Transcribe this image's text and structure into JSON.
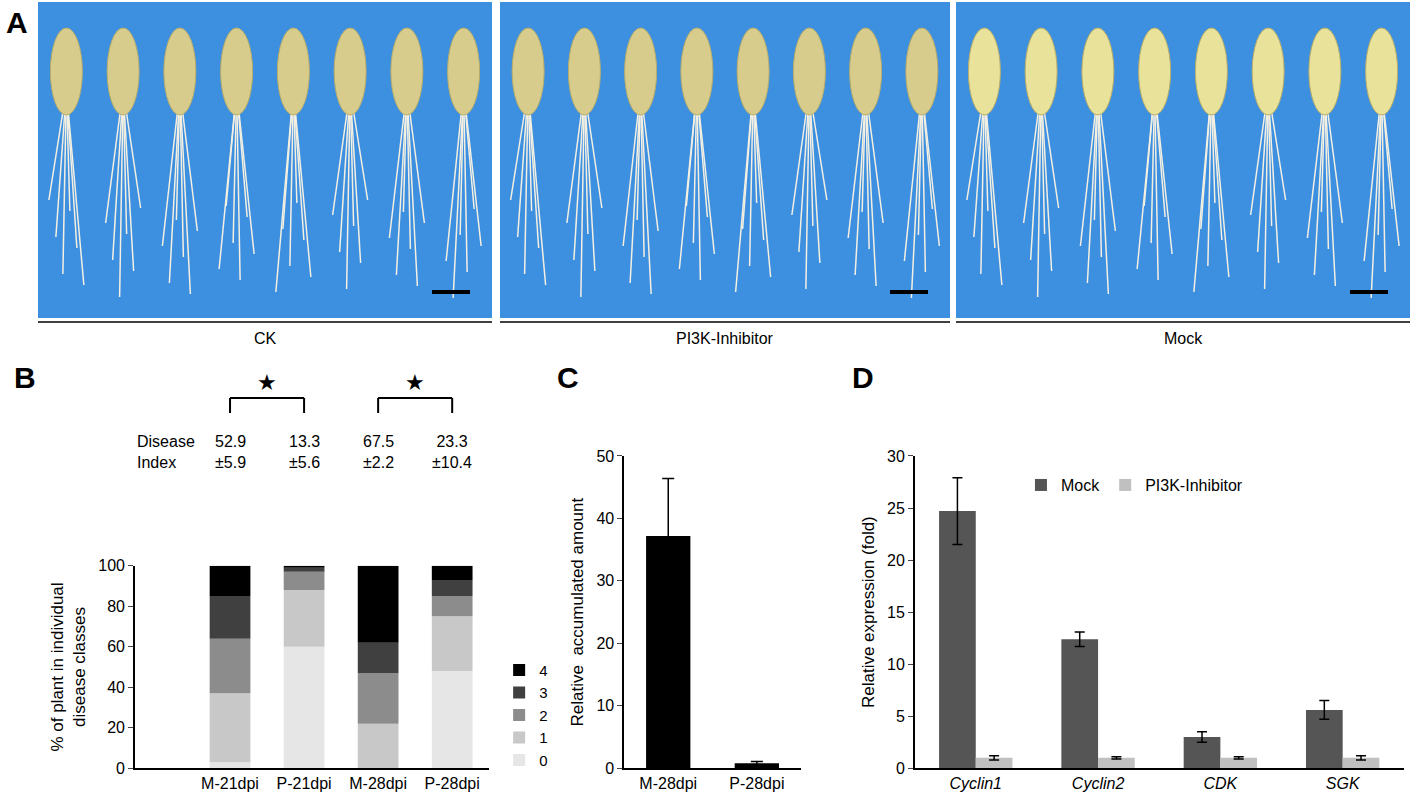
{
  "photo_panel": {
    "label": "A",
    "captions": [
      "CK",
      "PI3K-Inhibitor",
      "Mock"
    ]
  },
  "chart_data": [
    {
      "label": "B",
      "type": "bar",
      "stacked": true,
      "categories": [
        "M-21dpi",
        "P-21dpi",
        "M-28dpi",
        "P-28dpi"
      ],
      "series": [
        {
          "name": "0",
          "color": "#e6e6e6",
          "values": [
            3,
            60,
            0,
            48
          ]
        },
        {
          "name": "1",
          "color": "#c8c8c8",
          "values": [
            34,
            28,
            22,
            27
          ]
        },
        {
          "name": "2",
          "color": "#8c8c8c",
          "values": [
            27,
            9,
            25,
            10
          ]
        },
        {
          "name": "3",
          "color": "#404040",
          "values": [
            21,
            2,
            15,
            8
          ]
        },
        {
          "name": "4",
          "color": "#000000",
          "values": [
            15,
            1,
            38,
            7
          ]
        }
      ],
      "y_label": "% of plant in individual disease classes",
      "ylim": [
        0,
        100
      ],
      "yticks": [
        0,
        20,
        40,
        60,
        80,
        100
      ],
      "legend": "right",
      "disease_index": {
        "label": [
          "Disease",
          "Index"
        ],
        "values": [
          [
            "52.9",
            "±5.9"
          ],
          [
            "13.3",
            "±5.6"
          ],
          [
            "67.5",
            "±2.2"
          ],
          [
            "23.3",
            "±10.4"
          ]
        ]
      },
      "significance": [
        {
          "from": 0,
          "to": 1,
          "label": "★"
        },
        {
          "from": 2,
          "to": 3,
          "label": "★"
        }
      ]
    },
    {
      "label": "C",
      "type": "bar",
      "categories": [
        "M-28dpi",
        "P-28dpi"
      ],
      "values": [
        37.2,
        0.8
      ],
      "errors": [
        9.2,
        0.3
      ],
      "color": "#000000",
      "y_label": "Relative  accumulated amount",
      "ylim": [
        0,
        50
      ],
      "yticks": [
        0,
        10,
        20,
        30,
        40,
        50
      ]
    },
    {
      "label": "D",
      "type": "bar",
      "categories": [
        "Cyclin1",
        "Cyclin2",
        "CDK",
        "SGK"
      ],
      "series": [
        {
          "name": "Mock",
          "color": "#555555",
          "values": [
            24.7,
            12.4,
            3.0,
            5.6
          ],
          "errors": [
            3.2,
            0.7,
            0.5,
            0.9
          ]
        },
        {
          "name": "PI3K-Inhibitor",
          "color": "#c0c0c0",
          "values": [
            1.0,
            1.0,
            1.0,
            1.0
          ],
          "errors": [
            0.2,
            0.1,
            0.1,
            0.2
          ]
        }
      ],
      "y_label": "Relative expression (fold)",
      "ylim": [
        0,
        30
      ],
      "yticks": [
        0,
        5,
        10,
        15,
        20,
        25,
        30
      ],
      "legend": "top"
    }
  ]
}
